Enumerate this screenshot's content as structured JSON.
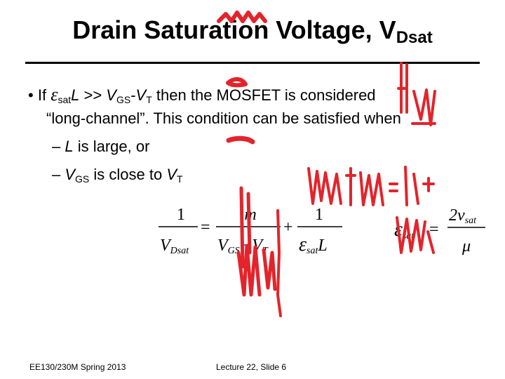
{
  "title": {
    "main": "Drain Saturation Voltage, V",
    "sub": "Dsat"
  },
  "bullet": {
    "marker": "•",
    "if": "If",
    "eps": "ε",
    "sat": "sat",
    "L": "L",
    "gtgt": " >> ",
    "V": "V",
    "GS": "GS",
    "dash": "-",
    "T": "T",
    "rest1": " then the MOSFET is considered",
    "line2": "“long-channel”.  This condition can be satisfied when",
    "sub1_dash": "– ",
    "sub1_L": "L",
    "sub1_rest": " is large, or",
    "sub2_dash": "– ",
    "sub2_is": " is close to "
  },
  "equation1": {
    "lhs_num": "1",
    "lhs_den": "V",
    "lhs_den_sub": "Dsat",
    "eq": "=",
    "t1_num": "m",
    "t1_den": "V",
    "t1_den_sub1": "GS",
    "t1_den_minus": "−",
    "t1_den_v": "V",
    "t1_den_sub2": "T",
    "plus": "+",
    "t2_num": "1",
    "t2_den_eps": "ε",
    "t2_den_sub": "sat",
    "t2_den_L": "L"
  },
  "equation2": {
    "lhs_eps": "ε",
    "lhs_sub": "sat",
    "eq": "=",
    "num": "2v",
    "num_sub": "sat",
    "den": "μ"
  },
  "annotation_color": "#e3242b",
  "footer": {
    "course": "EE130/230M Spring 2013",
    "lecture": "Lecture 22, Slide 6"
  }
}
